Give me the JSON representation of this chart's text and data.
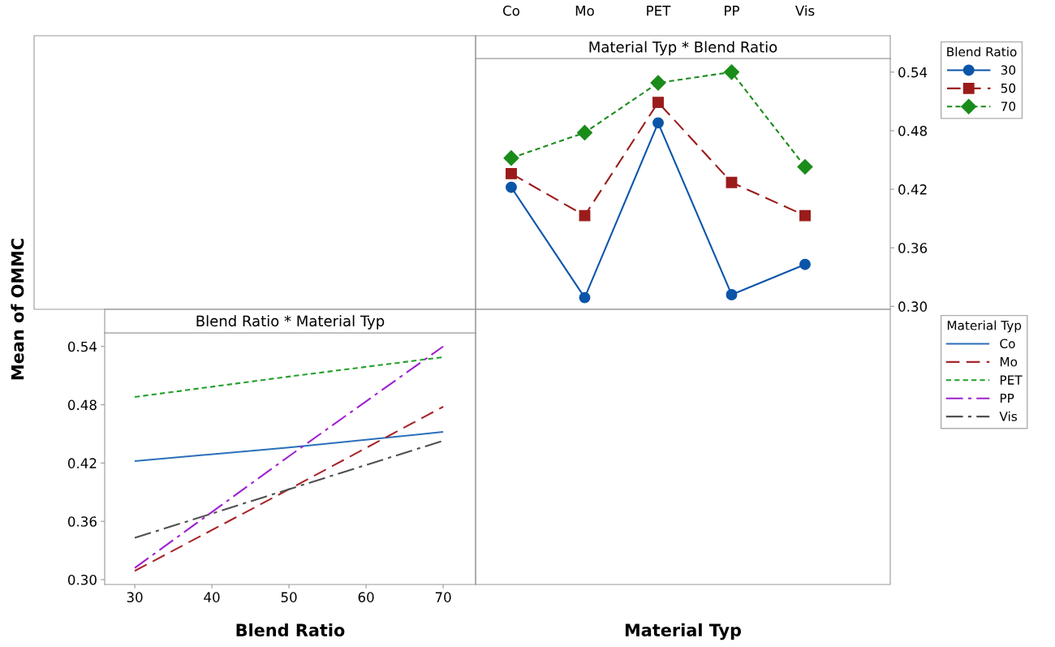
{
  "chart_data": [
    {
      "type": "line",
      "title": "Material Typ * Blend Ratio",
      "xlabel": "Material Typ",
      "legend_title": "Blend Ratio",
      "legend": "right",
      "categories": [
        "Co",
        "Mo",
        "PET",
        "PP",
        "Vis"
      ],
      "series": [
        {
          "name": "30",
          "color": "#0a55a8",
          "marker": "circle",
          "line_style": "solid",
          "values": [
            0.422,
            0.309,
            0.488,
            0.312,
            0.343
          ]
        },
        {
          "name": "50",
          "color": "#9b1b1b",
          "marker": "square",
          "line_style": "dashed",
          "values": [
            0.436,
            0.393,
            0.509,
            0.427,
            0.393
          ]
        },
        {
          "name": "70",
          "color": "#1a8c1a",
          "marker": "diamond",
          "line_style": "dotted",
          "values": [
            0.452,
            0.478,
            0.529,
            0.54,
            0.443
          ]
        }
      ],
      "ylim": [
        0.297,
        0.554
      ],
      "yticks": [
        {
          "value": 0.3,
          "label": "0.30"
        },
        {
          "value": 0.36,
          "label": "0.36"
        },
        {
          "value": 0.42,
          "label": "0.42"
        },
        {
          "value": 0.48,
          "label": "0.48"
        },
        {
          "value": 0.54,
          "label": "0.54"
        }
      ],
      "grid": false
    },
    {
      "type": "line",
      "title": "Blend Ratio * Material Typ",
      "xlabel": "Blend Ratio",
      "ylabel": "Mean of OMMC",
      "legend_title": "Material Typ",
      "legend": "right",
      "x": [
        30,
        50,
        70
      ],
      "series": [
        {
          "name": "Co",
          "color": "#2a6fbb",
          "line_style": "solid",
          "values": [
            0.422,
            0.436,
            0.452
          ]
        },
        {
          "name": "Mo",
          "color": "#a8262a",
          "line_style": "dashed",
          "values": [
            0.309,
            0.393,
            0.478
          ]
        },
        {
          "name": "PET",
          "color": "#22a02a",
          "line_style": "dotted",
          "values": [
            0.488,
            0.509,
            0.529
          ]
        },
        {
          "name": "PP",
          "color": "#a020d0",
          "line_style": "dashdot",
          "values": [
            0.312,
            0.427,
            0.54
          ]
        },
        {
          "name": "Vis",
          "color": "#505050",
          "line_style": "dashdot",
          "values": [
            0.343,
            0.393,
            0.443
          ]
        }
      ],
      "xlim": [
        26.1,
        74.2
      ],
      "xticks": [
        30,
        40,
        50,
        60,
        70
      ],
      "ylim": [
        0.295,
        0.554
      ],
      "yticks": [
        {
          "value": 0.3,
          "label": "0.30"
        },
        {
          "value": 0.36,
          "label": "0.36"
        },
        {
          "value": 0.42,
          "label": "0.42"
        },
        {
          "value": 0.48,
          "label": "0.48"
        },
        {
          "value": 0.54,
          "label": "0.54"
        }
      ],
      "grid": false
    }
  ]
}
